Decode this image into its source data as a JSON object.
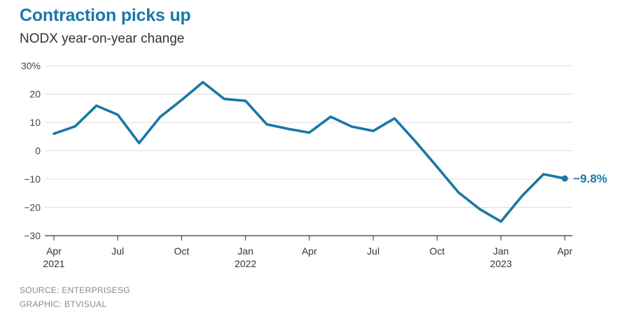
{
  "title": "Contraction picks up",
  "subtitle": "NODX year-on-year change",
  "source": "SOURCE: ENTERPRISESG",
  "graphic": "GRAPHIC: BTVISUAL",
  "colors": {
    "line": "#1a77a6",
    "title": "#1d77a8",
    "grid": "#dcdcdc",
    "axis": "#333333"
  },
  "chart_data": {
    "type": "line",
    "title": "Contraction picks up",
    "subtitle": "NODX year-on-year change",
    "ylim": [
      -30,
      30
    ],
    "y_ticks": [
      30,
      20,
      10,
      0,
      -10,
      -20,
      -30
    ],
    "y_tick_labels": [
      "30%",
      "20",
      "10",
      "0",
      "−10",
      "−20",
      "−30"
    ],
    "x_ticks": [
      {
        "index": 0,
        "label": "Apr",
        "year": "2021"
      },
      {
        "index": 3,
        "label": "Jul",
        "year": ""
      },
      {
        "index": 6,
        "label": "Oct",
        "year": ""
      },
      {
        "index": 9,
        "label": "Jan",
        "year": "2022"
      },
      {
        "index": 12,
        "label": "Apr",
        "year": ""
      },
      {
        "index": 15,
        "label": "Jul",
        "year": ""
      },
      {
        "index": 18,
        "label": "Oct",
        "year": ""
      },
      {
        "index": 21,
        "label": "Jan",
        "year": "2023"
      },
      {
        "index": 24,
        "label": "Apr",
        "year": ""
      }
    ],
    "grid": true,
    "x": [
      "2021-04",
      "2021-05",
      "2021-06",
      "2021-07",
      "2021-08",
      "2021-09",
      "2021-10",
      "2021-11",
      "2021-12",
      "2022-01",
      "2022-02",
      "2022-03",
      "2022-04",
      "2022-05",
      "2022-06",
      "2022-07",
      "2022-08",
      "2022-09",
      "2022-10",
      "2022-11",
      "2022-12",
      "2023-01",
      "2023-02",
      "2023-03",
      "2023-04"
    ],
    "series": [
      {
        "values": [
          6.0,
          8.6,
          15.9,
          12.7,
          2.7,
          12.0,
          17.9,
          24.2,
          18.3,
          17.6,
          9.3,
          7.7,
          6.4,
          12.0,
          8.5,
          7.0,
          11.4,
          3.1,
          -5.7,
          -14.7,
          -20.6,
          -25.0,
          -15.9,
          -8.3,
          -9.8
        ]
      }
    ],
    "end_label": "−9.8%"
  }
}
